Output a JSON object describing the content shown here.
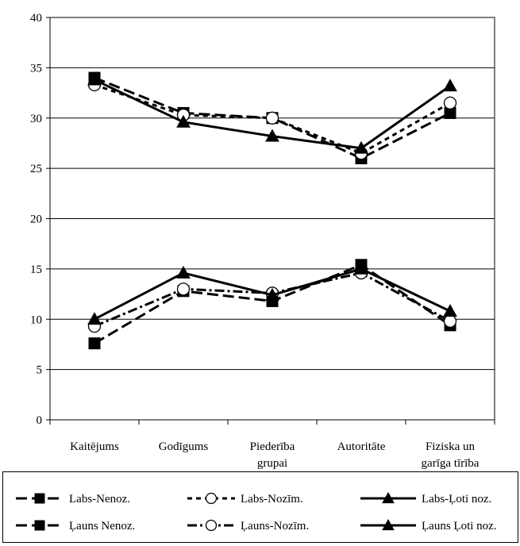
{
  "chart_data": {
    "type": "line",
    "categories": [
      [
        "Kaitējums"
      ],
      [
        "Godīgums"
      ],
      [
        "Piederība",
        "grupai"
      ],
      [
        "Autoritāte"
      ],
      [
        "Fiziska un",
        "garīga tīrība"
      ]
    ],
    "ylim": [
      0,
      40
    ],
    "yticks": [
      "0",
      "5",
      "10",
      "15",
      "20",
      "25",
      "30",
      "35",
      "40"
    ],
    "grid": true,
    "legend_position": "bottom",
    "series": [
      {
        "name": "Labs-Nenoz.",
        "values": [
          34.0,
          30.5,
          30.0,
          26.0,
          30.5
        ],
        "marker": "square",
        "dash": "long",
        "filled": true
      },
      {
        "name": "Labs-Nozīm.",
        "values": [
          33.3,
          30.3,
          30.0,
          26.5,
          31.5
        ],
        "marker": "circle",
        "dash": "short",
        "filled": false
      },
      {
        "name": "Labs-Ļoti noz.",
        "values": [
          33.8,
          29.6,
          28.2,
          27.0,
          33.2
        ],
        "marker": "triangle",
        "dash": "solid",
        "filled": true
      },
      {
        "name": "Ļauns Nenoz.",
        "values": [
          7.6,
          12.8,
          11.8,
          15.4,
          9.4
        ],
        "marker": "square",
        "dash": "long",
        "filled": true
      },
      {
        "name": "Ļauns-Nozīm.",
        "values": [
          9.3,
          13.0,
          12.6,
          14.6,
          9.8
        ],
        "marker": "circle",
        "dash": "dashdot",
        "filled": false
      },
      {
        "name": "Ļauns Ļoti noz.",
        "values": [
          10.0,
          14.6,
          12.4,
          15.0,
          10.8
        ],
        "marker": "triangle",
        "dash": "solid",
        "filled": true
      }
    ]
  }
}
